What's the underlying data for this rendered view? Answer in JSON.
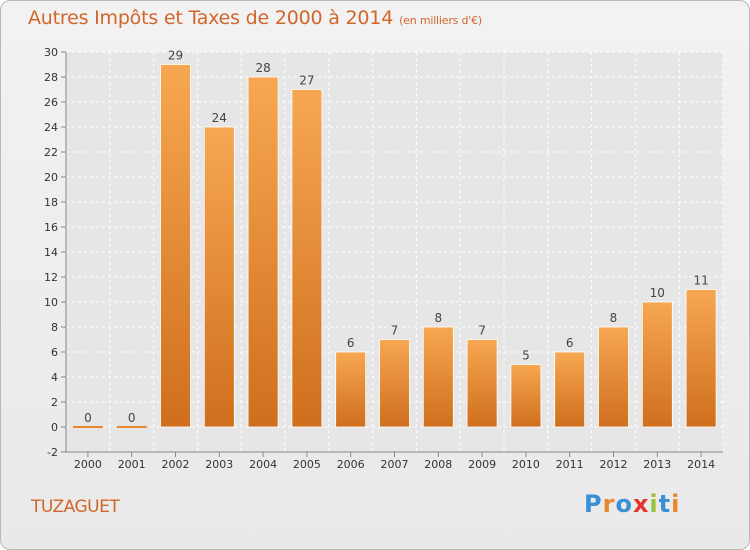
{
  "title": "Autres Impôts et Taxes de 2000 à 2014",
  "subtitle": "(en milliers d'€)",
  "commune": "TUZAGUET",
  "logo": {
    "letters": [
      "P",
      "r",
      "o",
      "x",
      "i",
      "t",
      "i"
    ],
    "colors": [
      "#3a8fd6",
      "#e8872b",
      "#3a8fd6",
      "#e3342f",
      "#9ac33c",
      "#3a8fd6",
      "#e8872b"
    ]
  },
  "chart_data": {
    "type": "bar",
    "title": "Autres Impôts et Taxes de 2000 à 2014",
    "categories": [
      "2000",
      "2001",
      "2002",
      "2003",
      "2004",
      "2005",
      "2006",
      "2007",
      "2008",
      "2009",
      "2010",
      "2011",
      "2012",
      "2013",
      "2014"
    ],
    "values": [
      0,
      0,
      29,
      24,
      28,
      27,
      6,
      7,
      8,
      7,
      5,
      6,
      8,
      10,
      11
    ],
    "ylim": [
      -2,
      30
    ],
    "yticks": [
      -2,
      0,
      2,
      4,
      6,
      8,
      10,
      12,
      14,
      16,
      18,
      20,
      22,
      24,
      26,
      28,
      30
    ],
    "bar_color": "#f09a40",
    "grid": true
  }
}
